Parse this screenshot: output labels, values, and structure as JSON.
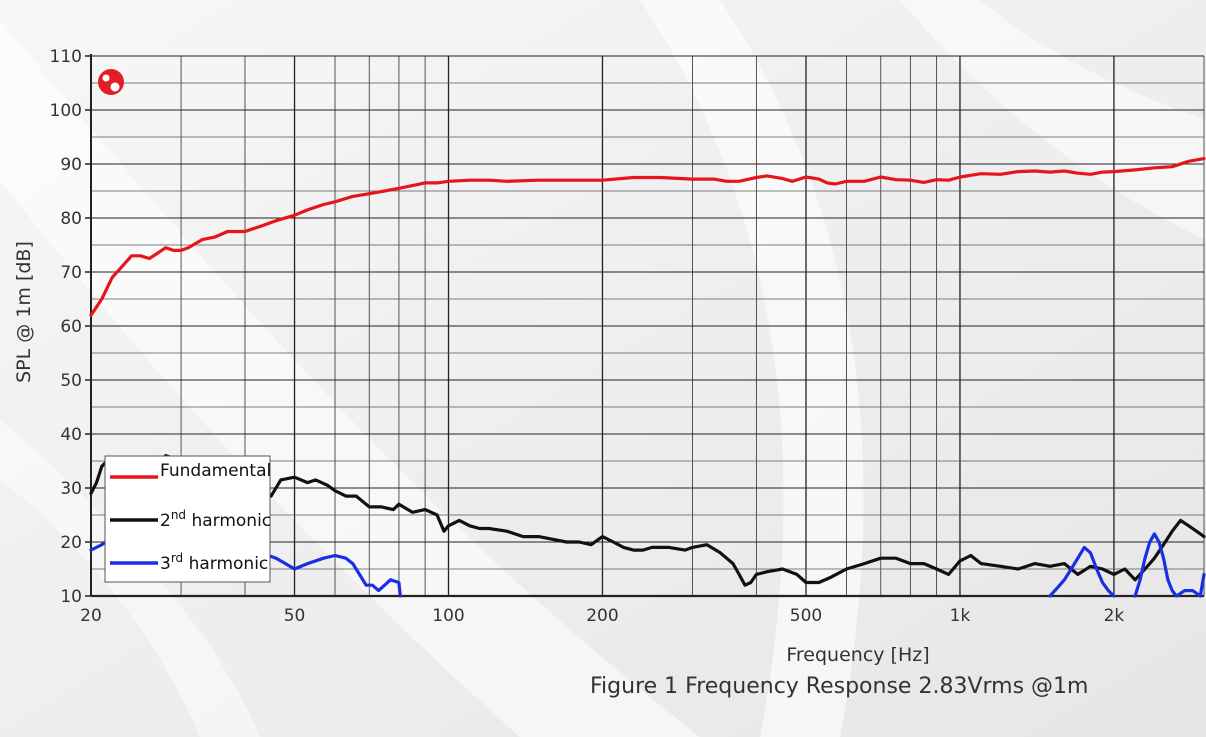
{
  "caption": "Figure 1 Frequency Response 2.83Vrms @1m",
  "colors": {
    "fundamental": "#e8141c",
    "harmonic2": "#111111",
    "harmonic3": "#1a2ee6",
    "logo": "#e21d28"
  },
  "icons": {
    "logo": "brand-logo-icon"
  },
  "chart_data": {
    "type": "line",
    "title": "",
    "xlabel": "Frequency [Hz]",
    "ylabel": "SPL @ 1m [dB]",
    "xscale": "log",
    "xlim": [
      20,
      3000
    ],
    "ylim": [
      10,
      110
    ],
    "grid": true,
    "legend_position": "bottom-left",
    "x_tick_labels": [
      {
        "value": 20,
        "label": "20"
      },
      {
        "value": 50,
        "label": "50"
      },
      {
        "value": 100,
        "label": "100"
      },
      {
        "value": 200,
        "label": "200"
      },
      {
        "value": 500,
        "label": "500"
      },
      {
        "value": 1000,
        "label": "1k"
      },
      {
        "value": 2000,
        "label": "2k"
      }
    ],
    "y_ticks": [
      10,
      20,
      30,
      40,
      50,
      60,
      70,
      80,
      90,
      100,
      110
    ],
    "series": [
      {
        "key": "fundamental",
        "name": "Fundamental",
        "label_main": "Fundamental",
        "label_sup": "",
        "label_rest": "",
        "color": "#e8141c",
        "points": [
          [
            20,
            62
          ],
          [
            21,
            65
          ],
          [
            22,
            69
          ],
          [
            23,
            71
          ],
          [
            24,
            73
          ],
          [
            25,
            73
          ],
          [
            26,
            72.5
          ],
          [
            27,
            73.5
          ],
          [
            28,
            74.5
          ],
          [
            29,
            74
          ],
          [
            30,
            74
          ],
          [
            31,
            74.5
          ],
          [
            33,
            76
          ],
          [
            35,
            76.5
          ],
          [
            37,
            77.5
          ],
          [
            40,
            77.5
          ],
          [
            43,
            78.5
          ],
          [
            46,
            79.5
          ],
          [
            50,
            80.5
          ],
          [
            53,
            81.5
          ],
          [
            57,
            82.5
          ],
          [
            60,
            83
          ],
          [
            65,
            84
          ],
          [
            70,
            84.5
          ],
          [
            75,
            85
          ],
          [
            80,
            85.5
          ],
          [
            85,
            86
          ],
          [
            90,
            86.5
          ],
          [
            95,
            86.5
          ],
          [
            100,
            86.8
          ],
          [
            110,
            87
          ],
          [
            120,
            87
          ],
          [
            130,
            86.8
          ],
          [
            150,
            87
          ],
          [
            170,
            87
          ],
          [
            200,
            87
          ],
          [
            230,
            87.5
          ],
          [
            260,
            87.5
          ],
          [
            300,
            87.2
          ],
          [
            330,
            87.2
          ],
          [
            350,
            86.8
          ],
          [
            370,
            86.8
          ],
          [
            400,
            87.5
          ],
          [
            420,
            87.8
          ],
          [
            450,
            87.3
          ],
          [
            470,
            86.8
          ],
          [
            500,
            87.6
          ],
          [
            530,
            87.2
          ],
          [
            550,
            86.5
          ],
          [
            570,
            86.3
          ],
          [
            600,
            86.8
          ],
          [
            650,
            86.8
          ],
          [
            700,
            87.6
          ],
          [
            750,
            87.1
          ],
          [
            800,
            87
          ],
          [
            850,
            86.6
          ],
          [
            900,
            87.1
          ],
          [
            950,
            87
          ],
          [
            1000,
            87.6
          ],
          [
            1100,
            88.2
          ],
          [
            1200,
            88.1
          ],
          [
            1300,
            88.6
          ],
          [
            1400,
            88.7
          ],
          [
            1500,
            88.5
          ],
          [
            1600,
            88.7
          ],
          [
            1700,
            88.3
          ],
          [
            1800,
            88.1
          ],
          [
            1900,
            88.5
          ],
          [
            2000,
            88.6
          ],
          [
            2200,
            88.9
          ],
          [
            2400,
            89.3
          ],
          [
            2600,
            89.5
          ],
          [
            2800,
            90.5
          ],
          [
            3000,
            91
          ]
        ]
      },
      {
        "key": "harmonic2",
        "name": "2nd harmonic",
        "label_main": "2",
        "label_sup": "nd",
        "label_rest": " harmonic",
        "color": "#111111",
        "points": [
          [
            20,
            29
          ],
          [
            20.5,
            31
          ],
          [
            21,
            34
          ],
          [
            21.5,
            35
          ],
          [
            22,
            34
          ],
          [
            23,
            32
          ],
          [
            24,
            31
          ],
          [
            25,
            30
          ],
          [
            26,
            32
          ],
          [
            27,
            34
          ],
          [
            28,
            36
          ],
          [
            29,
            35.5
          ],
          [
            30,
            34
          ],
          [
            31,
            33
          ],
          [
            32,
            32
          ],
          [
            34,
            30
          ],
          [
            36,
            30
          ],
          [
            38,
            31
          ],
          [
            40,
            31
          ],
          [
            43,
            29
          ],
          [
            45,
            28.5
          ],
          [
            47,
            31.5
          ],
          [
            50,
            32
          ],
          [
            53,
            31
          ],
          [
            55,
            31.5
          ],
          [
            58,
            30.5
          ],
          [
            60,
            29.5
          ],
          [
            63,
            28.5
          ],
          [
            66,
            28.5
          ],
          [
            70,
            26.5
          ],
          [
            74,
            26.5
          ],
          [
            78,
            26
          ],
          [
            80,
            27
          ],
          [
            85,
            25.5
          ],
          [
            90,
            26
          ],
          [
            95,
            25
          ],
          [
            98,
            22
          ],
          [
            100,
            23
          ],
          [
            105,
            24
          ],
          [
            110,
            23
          ],
          [
            115,
            22.5
          ],
          [
            120,
            22.5
          ],
          [
            130,
            22
          ],
          [
            140,
            21
          ],
          [
            150,
            21
          ],
          [
            160,
            20.5
          ],
          [
            170,
            20
          ],
          [
            180,
            20
          ],
          [
            190,
            19.5
          ],
          [
            200,
            21
          ],
          [
            210,
            20
          ],
          [
            220,
            19
          ],
          [
            230,
            18.5
          ],
          [
            240,
            18.5
          ],
          [
            250,
            19
          ],
          [
            270,
            19
          ],
          [
            290,
            18.5
          ],
          [
            300,
            19
          ],
          [
            320,
            19.5
          ],
          [
            340,
            18
          ],
          [
            360,
            16
          ],
          [
            370,
            14
          ],
          [
            380,
            12
          ],
          [
            390,
            12.5
          ],
          [
            400,
            14
          ],
          [
            420,
            14.5
          ],
          [
            450,
            15
          ],
          [
            480,
            14
          ],
          [
            500,
            12.5
          ],
          [
            530,
            12.5
          ],
          [
            560,
            13.5
          ],
          [
            600,
            15
          ],
          [
            650,
            16
          ],
          [
            700,
            17
          ],
          [
            750,
            17
          ],
          [
            800,
            16
          ],
          [
            850,
            16
          ],
          [
            900,
            15
          ],
          [
            950,
            14
          ],
          [
            1000,
            16.5
          ],
          [
            1050,
            17.5
          ],
          [
            1100,
            16
          ],
          [
            1200,
            15.5
          ],
          [
            1300,
            15
          ],
          [
            1400,
            16
          ],
          [
            1500,
            15.5
          ],
          [
            1600,
            16
          ],
          [
            1700,
            14
          ],
          [
            1800,
            15.5
          ],
          [
            1900,
            15
          ],
          [
            2000,
            14
          ],
          [
            2100,
            15
          ],
          [
            2200,
            13
          ],
          [
            2300,
            15
          ],
          [
            2400,
            17
          ],
          [
            2500,
            19.5
          ],
          [
            2600,
            22
          ],
          [
            2700,
            24
          ],
          [
            2800,
            23
          ],
          [
            2900,
            22
          ],
          [
            3000,
            21
          ]
        ]
      },
      {
        "key": "harmonic3",
        "name": "3rd harmonic",
        "label_main": "3",
        "label_sup": "rd",
        "label_rest": " harmonic",
        "color": "#1a2ee6",
        "points": [
          [
            20,
            18.5
          ],
          [
            21,
            19.5
          ],
          [
            22,
            21
          ],
          [
            24,
            22
          ],
          [
            26,
            22
          ],
          [
            28,
            21
          ],
          [
            30,
            20.5
          ],
          [
            35,
            20.5
          ],
          [
            40,
            20
          ],
          [
            43,
            18
          ],
          [
            46,
            17
          ],
          [
            48,
            16
          ],
          [
            50,
            15
          ],
          [
            53,
            16
          ],
          [
            57,
            17
          ],
          [
            60,
            17.5
          ],
          [
            63,
            17
          ],
          [
            65,
            16
          ],
          [
            67,
            14
          ],
          [
            69,
            12
          ],
          [
            71,
            12
          ],
          [
            73,
            11
          ],
          [
            75,
            12
          ],
          [
            77,
            13
          ],
          [
            80,
            12.5
          ],
          [
            80.5,
            10
          ]
        ]
      },
      {
        "key": "harmonic3_hf",
        "color": "#1a2ee6",
        "points": [
          [
            1500,
            10
          ],
          [
            1550,
            11.5
          ],
          [
            1600,
            13
          ],
          [
            1650,
            15
          ],
          [
            1700,
            17
          ],
          [
            1750,
            19
          ],
          [
            1800,
            18
          ],
          [
            1850,
            15
          ],
          [
            1900,
            12.5
          ],
          [
            1950,
            11
          ],
          [
            2000,
            10
          ]
        ]
      },
      {
        "key": "harmonic3_hf2",
        "color": "#1a2ee6",
        "points": [
          [
            2200,
            10
          ],
          [
            2250,
            13
          ],
          [
            2300,
            17
          ],
          [
            2350,
            20
          ],
          [
            2400,
            21.5
          ],
          [
            2450,
            20
          ],
          [
            2500,
            17
          ],
          [
            2550,
            13
          ],
          [
            2600,
            11
          ],
          [
            2650,
            10
          ],
          [
            2700,
            10.5
          ],
          [
            2750,
            11
          ],
          [
            2850,
            11
          ],
          [
            2950,
            10
          ],
          [
            3000,
            14
          ]
        ]
      }
    ]
  }
}
